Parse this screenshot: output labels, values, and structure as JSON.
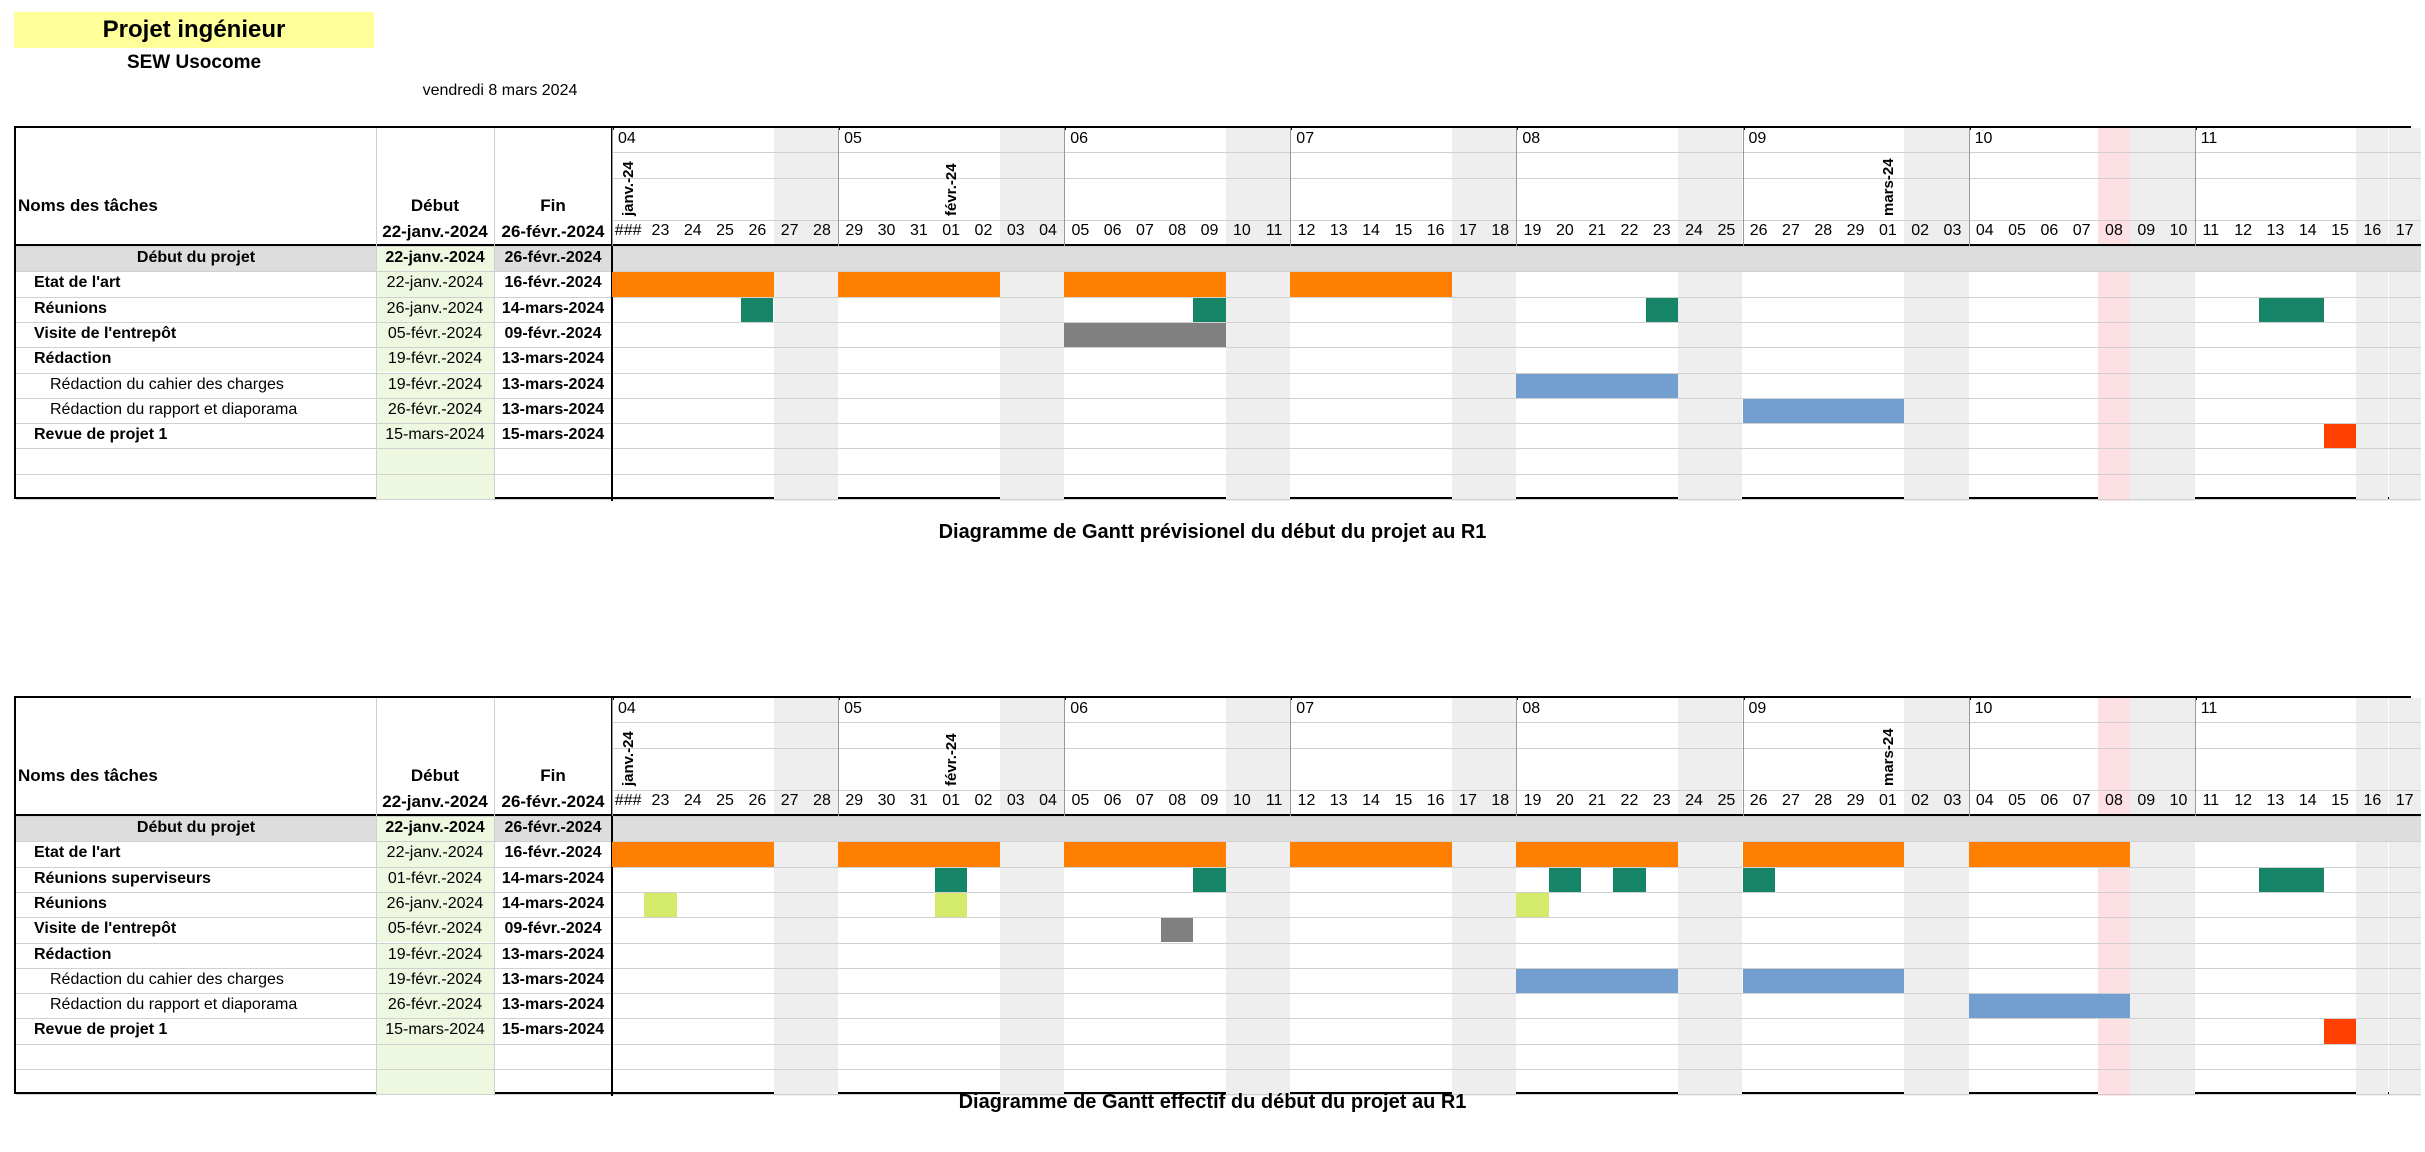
{
  "header": {
    "title": "Projet ingénieur",
    "subtitle": "SEW Usocome",
    "date": "vendredi 8 mars 2024"
  },
  "table_headers": {
    "name": "Noms des tâches",
    "start": "Début",
    "end": "Fin",
    "start_value": "22-janv.-2024",
    "end_value": "26-févr.-2024",
    "first_day": "###"
  },
  "timeline": {
    "weeks": [
      "04",
      "05",
      "06",
      "07",
      "08",
      "09",
      "10",
      "11"
    ],
    "days": [
      "###",
      "23",
      "24",
      "25",
      "26",
      "27",
      "28",
      "29",
      "30",
      "31",
      "01",
      "02",
      "03",
      "04",
      "05",
      "06",
      "07",
      "08",
      "09",
      "10",
      "11",
      "12",
      "13",
      "14",
      "15",
      "16",
      "17",
      "18",
      "19",
      "20",
      "21",
      "22",
      "23",
      "24",
      "25",
      "26",
      "27",
      "28",
      "29",
      "01",
      "02",
      "03",
      "04",
      "05",
      "06",
      "07",
      "08",
      "09",
      "10",
      "11",
      "12",
      "13",
      "14",
      "15",
      "16",
      "17"
    ],
    "months": [
      {
        "label": "janv.-24",
        "day_index": 0
      },
      {
        "label": "févr.-24",
        "day_index": 10
      },
      {
        "label": "mars-24",
        "day_index": 39
      }
    ],
    "weekend_indices": [
      5,
      6,
      12,
      13,
      19,
      20,
      26,
      27,
      33,
      34,
      40,
      41,
      47,
      48,
      54,
      55
    ],
    "today_index": 46
  },
  "colors": {
    "orange": "#ff8000",
    "teal": "#168567",
    "gray": "#808080",
    "blue": "#729fcf",
    "lime": "#d4ea6b",
    "red": "#ff4000",
    "weekend": "#eeeeee",
    "today": "#fde0e4",
    "start_cell": "#eef7e0",
    "project_row": "#dddddd"
  },
  "charts": [
    {
      "caption": "Diagramme de Gantt prévisionel du début du projet au R1",
      "tasks": [
        {
          "name": "Début du projet",
          "start": "22-janv.-2024",
          "end": "26-févr.-2024",
          "style": "project",
          "bars": []
        },
        {
          "name": "Etat de l'art",
          "start": "22-janv.-2024",
          "end": "16-févr.-2024",
          "style": "bold",
          "bars": [
            [
              0,
              4,
              "orange"
            ],
            [
              7,
              11,
              "orange"
            ],
            [
              14,
              18,
              "orange"
            ],
            [
              21,
              25,
              "orange"
            ]
          ]
        },
        {
          "name": "Réunions",
          "start": "26-janv.-2024",
          "end": "14-mars-2024",
          "style": "bold",
          "bars": [
            [
              4,
              4,
              "teal"
            ],
            [
              18,
              18,
              "teal"
            ],
            [
              32,
              32,
              "teal"
            ],
            [
              51,
              52,
              "teal"
            ]
          ]
        },
        {
          "name": "Visite de l'entrepôt",
          "start": "05-févr.-2024",
          "end": "09-févr.-2024",
          "style": "bold",
          "bars": [
            [
              14,
              18,
              "gray"
            ]
          ]
        },
        {
          "name": "Rédaction",
          "start": "19-févr.-2024",
          "end": "13-mars-2024",
          "style": "bold",
          "bars": []
        },
        {
          "name": "Rédaction du cahier des charges",
          "start": "19-févr.-2024",
          "end": "13-mars-2024",
          "style": "sub",
          "bars": [
            [
              28,
              32,
              "blue"
            ]
          ]
        },
        {
          "name": "Rédaction du rapport et diaporama",
          "start": "26-févr.-2024",
          "end": "13-mars-2024",
          "style": "sub",
          "bars": [
            [
              35,
              39,
              "blue"
            ]
          ]
        },
        {
          "name": "Revue de projet 1",
          "start": "15-mars-2024",
          "end": "15-mars-2024",
          "style": "bold",
          "bars": [
            [
              53,
              53,
              "red"
            ]
          ]
        },
        {
          "name": "",
          "start": "",
          "end": "",
          "style": "empty",
          "bars": []
        },
        {
          "name": "",
          "start": "",
          "end": "",
          "style": "empty",
          "bars": []
        }
      ]
    },
    {
      "caption": "Diagramme de Gantt effectif du début du projet au R1",
      "tasks": [
        {
          "name": "Début du projet",
          "start": "22-janv.-2024",
          "end": "26-févr.-2024",
          "style": "project",
          "bars": []
        },
        {
          "name": "Etat de l'art",
          "start": "22-janv.-2024",
          "end": "16-févr.-2024",
          "style": "bold",
          "bars": [
            [
              0,
              4,
              "orange"
            ],
            [
              7,
              11,
              "orange"
            ],
            [
              14,
              18,
              "orange"
            ],
            [
              21,
              25,
              "orange"
            ],
            [
              28,
              32,
              "orange"
            ],
            [
              35,
              39,
              "orange"
            ],
            [
              42,
              46,
              "orange"
            ]
          ]
        },
        {
          "name": "Réunions superviseurs",
          "start": "01-févr.-2024",
          "end": "14-mars-2024",
          "style": "bold",
          "bars": [
            [
              10,
              10,
              "teal"
            ],
            [
              18,
              18,
              "teal"
            ],
            [
              29,
              29,
              "teal"
            ],
            [
              31,
              31,
              "teal"
            ],
            [
              35,
              35,
              "teal"
            ],
            [
              51,
              52,
              "teal"
            ]
          ]
        },
        {
          "name": "Réunions",
          "start": "26-janv.-2024",
          "end": "14-mars-2024",
          "style": "bold",
          "bars": [
            [
              1,
              1,
              "lime"
            ],
            [
              10,
              10,
              "lime"
            ],
            [
              28,
              28,
              "lime"
            ]
          ]
        },
        {
          "name": "Visite de l'entrepôt",
          "start": "05-févr.-2024",
          "end": "09-févr.-2024",
          "style": "bold",
          "bars": [
            [
              17,
              17,
              "gray"
            ]
          ]
        },
        {
          "name": "Rédaction",
          "start": "19-févr.-2024",
          "end": "13-mars-2024",
          "style": "bold",
          "bars": []
        },
        {
          "name": "Rédaction du cahier des charges",
          "start": "19-févr.-2024",
          "end": "13-mars-2024",
          "style": "sub",
          "bars": [
            [
              28,
              32,
              "blue"
            ],
            [
              35,
              39,
              "blue"
            ]
          ]
        },
        {
          "name": "Rédaction du rapport et diaporama",
          "start": "26-févr.-2024",
          "end": "13-mars-2024",
          "style": "sub",
          "bars": [
            [
              42,
              46,
              "blue"
            ]
          ]
        },
        {
          "name": "Revue de projet 1",
          "start": "15-mars-2024",
          "end": "15-mars-2024",
          "style": "bold",
          "bars": [
            [
              53,
              53,
              "red"
            ]
          ]
        },
        {
          "name": "",
          "start": "",
          "end": "",
          "style": "empty",
          "bars": []
        },
        {
          "name": "",
          "start": "",
          "end": "",
          "style": "empty",
          "bars": []
        }
      ]
    }
  ]
}
